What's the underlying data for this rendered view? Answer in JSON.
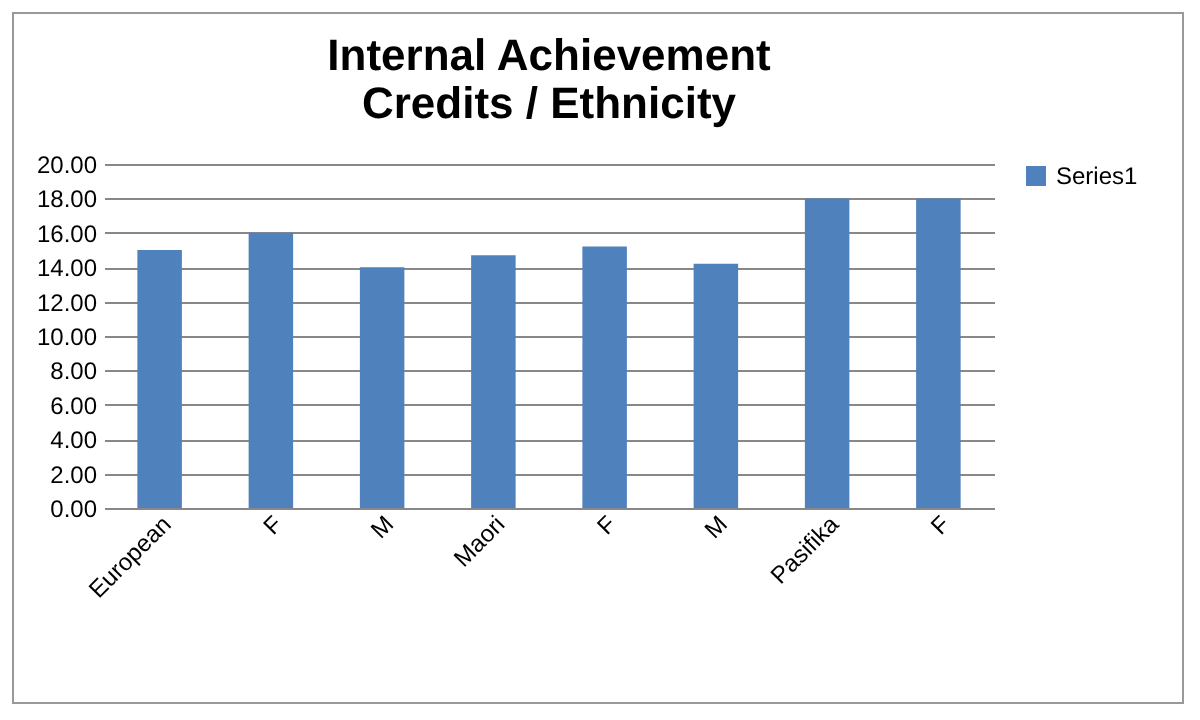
{
  "chart_data": {
    "type": "bar",
    "title": "Internal Achievement\nCredits / Ethnicity",
    "categories": [
      "European",
      "F",
      "M",
      "Maori",
      "F",
      "M",
      "Pasifika",
      "F"
    ],
    "series": [
      {
        "name": "Series1",
        "color": "#4f81bd",
        "values": [
          15.0,
          16.0,
          14.0,
          14.7,
          15.2,
          14.2,
          18.0,
          18.0
        ]
      }
    ],
    "ylim": [
      0,
      20
    ],
    "yticks": [
      {
        "value": 0,
        "label": "0.00"
      },
      {
        "value": 2,
        "label": "2.00"
      },
      {
        "value": 4,
        "label": "4.00"
      },
      {
        "value": 6,
        "label": "6.00"
      },
      {
        "value": 8,
        "label": "8.00"
      },
      {
        "value": 10,
        "label": "10.00"
      },
      {
        "value": 12,
        "label": "12.00"
      },
      {
        "value": 14,
        "label": "14.00"
      },
      {
        "value": 16,
        "label": "16.00"
      },
      {
        "value": 18,
        "label": "18.00"
      },
      {
        "value": 20,
        "label": "20.00"
      }
    ],
    "grid": "y",
    "legend": "right"
  }
}
